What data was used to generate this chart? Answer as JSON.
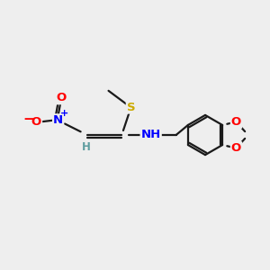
{
  "background_color": "#eeeeee",
  "bond_color": "#1a1a1a",
  "atom_colors": {
    "O": "#ff0000",
    "N": "#0000ff",
    "S": "#ccaa00",
    "C": "#1a1a1a",
    "H": "#5f9ea0"
  },
  "figsize": [
    3.0,
    3.0
  ],
  "dpi": 100,
  "bond_lw": 1.6,
  "double_sep": 0.09
}
